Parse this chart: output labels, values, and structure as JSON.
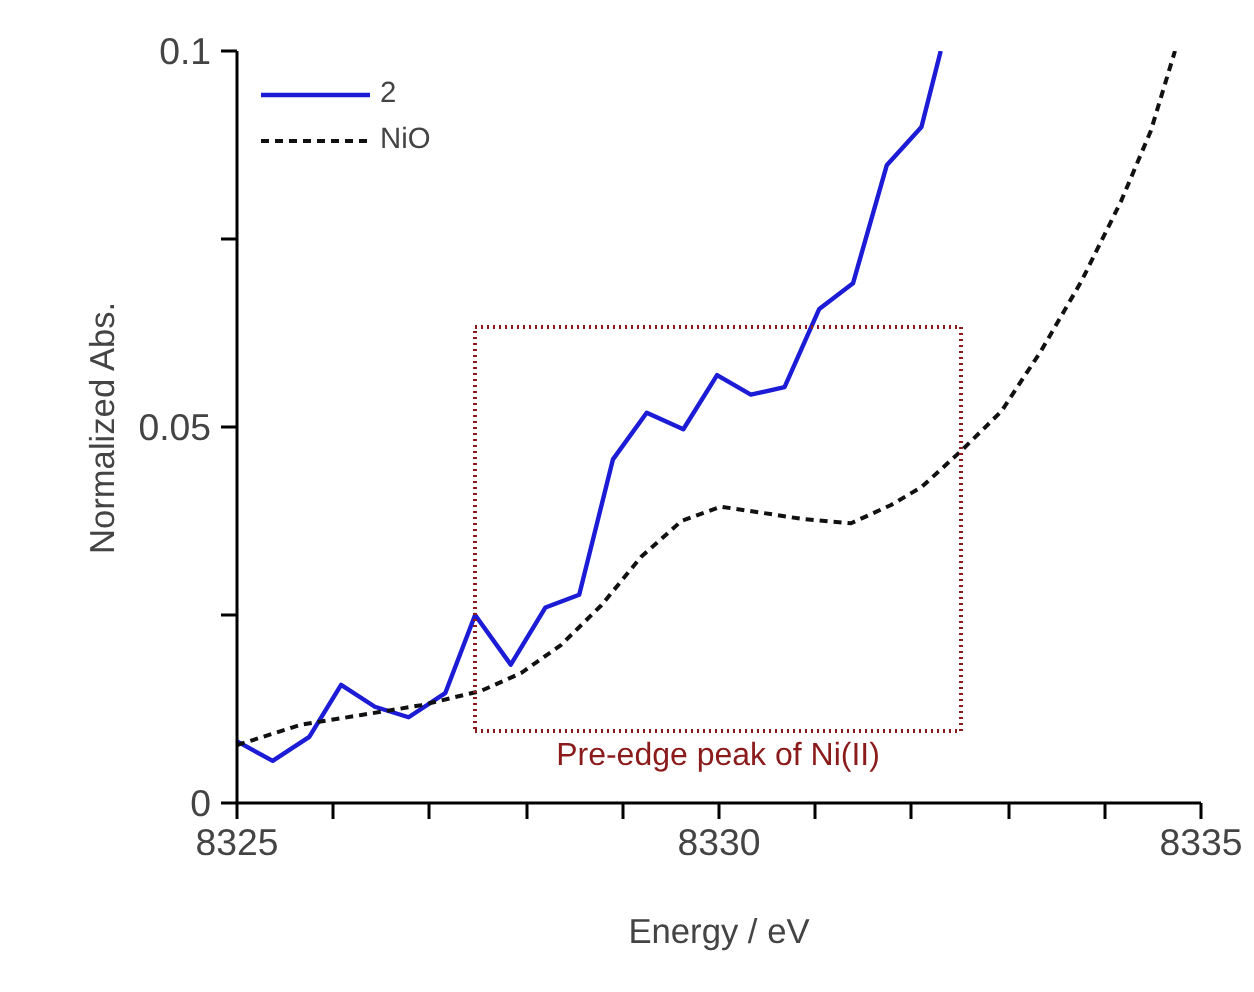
{
  "chart_data": {
    "type": "line",
    "xlabel": "Energy / eV",
    "ylabel": "Normalized Abs.",
    "xlim": [
      8325,
      8335
    ],
    "ylim": [
      0,
      0.1
    ],
    "xticks": [
      8325,
      {
        "value": 8326,
        "label": null
      },
      {
        "value": 8327,
        "label": null
      },
      {
        "value": 8328,
        "label": null
      },
      {
        "value": 8329,
        "label": null
      },
      8330,
      {
        "value": 8331,
        "label": null
      },
      {
        "value": 8332,
        "label": null
      },
      {
        "value": 8333,
        "label": null
      },
      {
        "value": 8334,
        "label": null
      },
      8335
    ],
    "yticks": [
      0,
      {
        "value": 0.025,
        "label": null
      },
      0.05,
      {
        "value": 0.075,
        "label": null
      },
      0.1
    ],
    "grid": false,
    "legend": "top left",
    "series": [
      {
        "name": "2",
        "color": "#1c1cd6",
        "line_style": "solid",
        "x": [
          8325,
          8325.37,
          8325.75,
          8326.08,
          8326.43,
          8326.78,
          8327.16,
          8327.47,
          8327.84,
          8328.2,
          8328.55,
          8328.9,
          8329.25,
          8329.63,
          8329.98,
          8330.33,
          8330.68,
          8331.04,
          8331.39,
          8331.74,
          8332.1,
          8332.3
        ],
        "values": [
          0.0082,
          0.0056,
          0.0088,
          0.0157,
          0.0128,
          0.0114,
          0.0146,
          0.025,
          0.0184,
          0.026,
          0.0277,
          0.0457,
          0.0519,
          0.0497,
          0.0569,
          0.0543,
          0.0553,
          0.0657,
          0.0691,
          0.0848,
          0.0899,
          0.1
        ]
      },
      {
        "name": "NiO",
        "color": "#111111",
        "line_style": "dashed",
        "x": [
          8325,
          8325.66,
          8326.29,
          8326.91,
          8327.53,
          8327.95,
          8328.36,
          8328.78,
          8329.19,
          8329.61,
          8330.02,
          8330.44,
          8330.85,
          8331.37,
          8331.78,
          8332.1,
          8332.51,
          8332.93,
          8333.34,
          8333.76,
          8334.17,
          8334.48,
          8334.73
        ],
        "values": [
          0.0077,
          0.0104,
          0.0117,
          0.013,
          0.0149,
          0.0173,
          0.021,
          0.0263,
          0.0327,
          0.0375,
          0.0394,
          0.0386,
          0.0378,
          0.0372,
          0.0396,
          0.042,
          0.0468,
          0.0521,
          0.0601,
          0.0694,
          0.08,
          0.0894,
          0.1
        ]
      }
    ],
    "annotations": [
      "Pre-edge peak of Ni(II)"
    ]
  }
}
